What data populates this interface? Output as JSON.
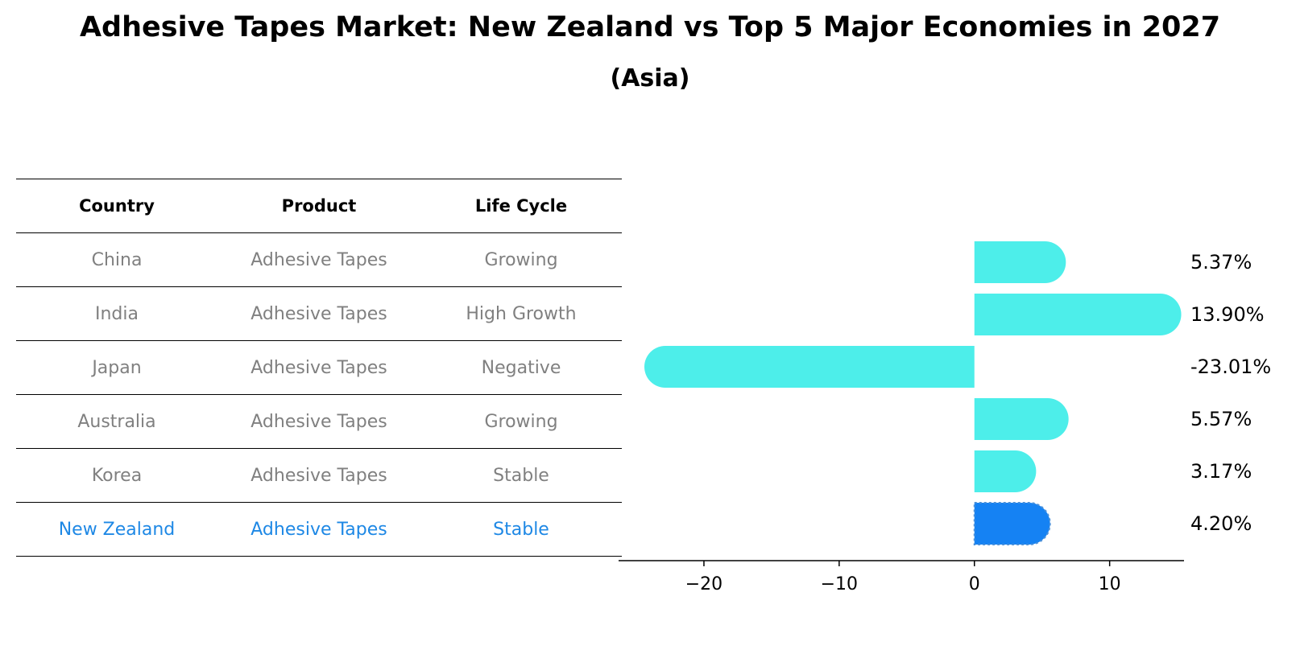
{
  "title": "Adhesive Tapes Market: New Zealand vs Top 5 Major Economies in 2027",
  "subtitle": "(Asia)",
  "table": {
    "headers": [
      "Country",
      "Product",
      "Life Cycle"
    ],
    "rows": [
      {
        "country": "China",
        "product": "Adhesive Tapes",
        "life_cycle": "Growing"
      },
      {
        "country": "India",
        "product": "Adhesive Tapes",
        "life_cycle": "High Growth"
      },
      {
        "country": "Japan",
        "product": "Adhesive Tapes",
        "life_cycle": "Negative"
      },
      {
        "country": "Australia",
        "product": "Adhesive Tapes",
        "life_cycle": "Growing"
      },
      {
        "country": "Korea",
        "product": "Adhesive Tapes",
        "life_cycle": "Stable"
      },
      {
        "country": "New Zealand",
        "product": "Adhesive Tapes",
        "life_cycle": "Stable"
      }
    ]
  },
  "chart_data": {
    "type": "bar",
    "orientation": "horizontal",
    "categories": [
      "China",
      "India",
      "Japan",
      "Australia",
      "Korea",
      "New Zealand"
    ],
    "values": [
      5.37,
      13.9,
      -23.01,
      5.57,
      3.17,
      4.2
    ],
    "value_labels": [
      "5.37%",
      "13.90%",
      "-23.01%",
      "5.57%",
      "3.17%",
      "4.20%"
    ],
    "highlight": "New Zealand",
    "xlim": [
      -25,
      15.5
    ],
    "xticks": [
      -20,
      -10,
      0,
      10
    ],
    "xtick_labels": [
      "−20",
      "−10",
      "0",
      "10"
    ],
    "colors": {
      "bar": "#4deeea",
      "highlight": "#1582f3",
      "table_highlight_text": "#1e88e5",
      "table_text": "#808080"
    }
  }
}
